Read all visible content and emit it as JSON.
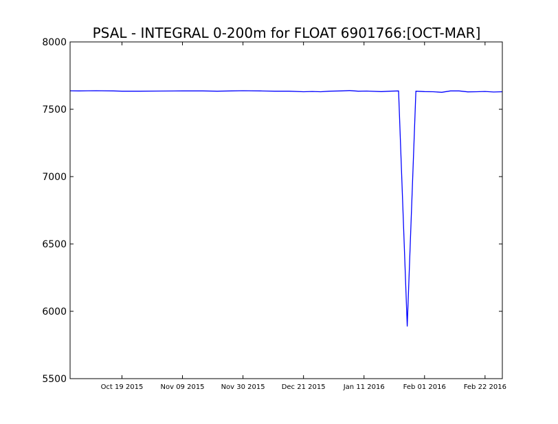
{
  "chart_data": {
    "type": "line",
    "title": "PSAL - INTEGRAL 0-200m for FLOAT 6901766:[OCT-MAR]",
    "xlabel": "",
    "ylabel": "",
    "ylim": [
      5500,
      8000
    ],
    "xlim": [
      "2015-10-01",
      "2016-02-28"
    ],
    "yticks": [
      5500,
      6000,
      6500,
      7000,
      7500,
      8000
    ],
    "xticks": [
      {
        "date": "2015-10-19",
        "label": "Oct 19 2015"
      },
      {
        "date": "2015-11-09",
        "label": "Nov 09 2015"
      },
      {
        "date": "2015-11-30",
        "label": "Nov 30 2015"
      },
      {
        "date": "2015-12-21",
        "label": "Dec 21 2015"
      },
      {
        "date": "2016-01-11",
        "label": "Jan 11 2016"
      },
      {
        "date": "2016-02-01",
        "label": "Feb 01 2016"
      },
      {
        "date": "2016-02-22",
        "label": "Feb 22 2016"
      }
    ],
    "grid": false,
    "series_color": "#0000ff",
    "series": [
      {
        "points": [
          [
            "2015-10-01",
            7637
          ],
          [
            "2015-10-04",
            7636
          ],
          [
            "2015-10-10",
            7638
          ],
          [
            "2015-10-16",
            7636
          ],
          [
            "2015-10-19",
            7634
          ],
          [
            "2015-10-25",
            7634
          ],
          [
            "2015-11-01",
            7635
          ],
          [
            "2015-11-09",
            7636
          ],
          [
            "2015-11-16",
            7636
          ],
          [
            "2015-11-21",
            7634
          ],
          [
            "2015-11-26",
            7636
          ],
          [
            "2015-11-30",
            7638
          ],
          [
            "2015-12-06",
            7636
          ],
          [
            "2015-12-11",
            7634
          ],
          [
            "2015-12-16",
            7634
          ],
          [
            "2015-12-21",
            7630
          ],
          [
            "2015-12-24",
            7632
          ],
          [
            "2015-12-27",
            7630
          ],
          [
            "2015-12-30",
            7634
          ],
          [
            "2016-01-03",
            7636
          ],
          [
            "2016-01-06",
            7639
          ],
          [
            "2016-01-09",
            7634
          ],
          [
            "2016-01-12",
            7635
          ],
          [
            "2016-01-17",
            7631
          ],
          [
            "2016-01-20",
            7634
          ],
          [
            "2016-01-23",
            7636
          ],
          [
            "2016-01-26",
            5890
          ],
          [
            "2016-01-29",
            7634
          ],
          [
            "2016-02-01",
            7631
          ],
          [
            "2016-02-04",
            7630
          ],
          [
            "2016-02-07",
            7626
          ],
          [
            "2016-02-10",
            7636
          ],
          [
            "2016-02-13",
            7636
          ],
          [
            "2016-02-16",
            7629
          ],
          [
            "2016-02-19",
            7630
          ],
          [
            "2016-02-22",
            7632
          ],
          [
            "2016-02-25",
            7628
          ],
          [
            "2016-02-28",
            7630
          ]
        ]
      }
    ]
  }
}
